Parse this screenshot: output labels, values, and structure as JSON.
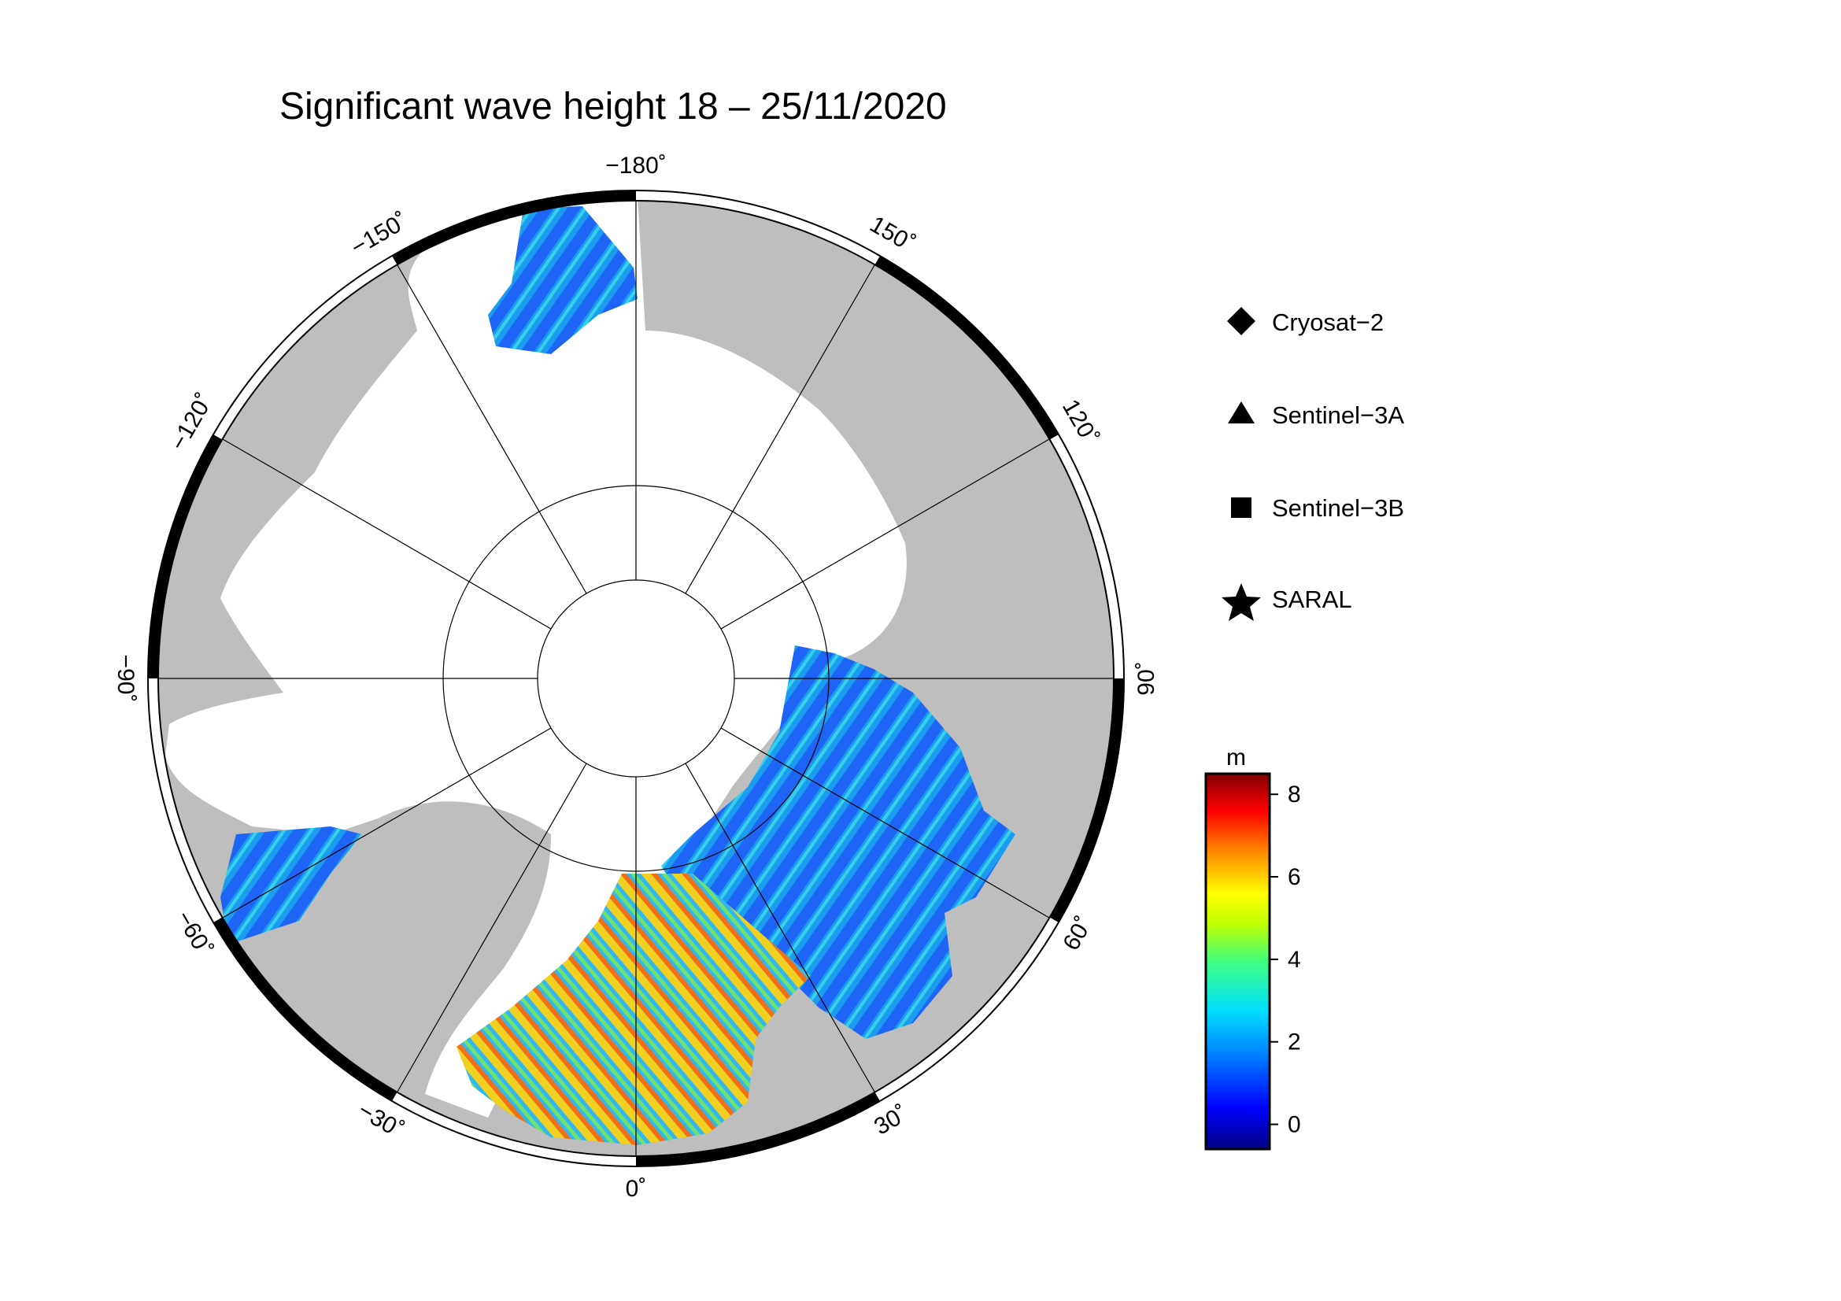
{
  "title": "Significant wave height 18 – 25/11/2020",
  "longitude_labels": [
    {
      "lon": -180,
      "text": "−180˚"
    },
    {
      "lon": 150,
      "text": "150˚"
    },
    {
      "lon": 120,
      "text": "120˚"
    },
    {
      "lon": 90,
      "text": "90˚"
    },
    {
      "lon": 60,
      "text": "60˚"
    },
    {
      "lon": 30,
      "text": "30˚"
    },
    {
      "lon": 0,
      "text": "0˚"
    },
    {
      "lon": -30,
      "text": "−30˚"
    },
    {
      "lon": -60,
      "text": "−60˚"
    },
    {
      "lon": -90,
      "text": "−90˚"
    },
    {
      "lon": -120,
      "text": "−120˚"
    },
    {
      "lon": -150,
      "text": "−150˚"
    }
  ],
  "legend": [
    {
      "symbol": "diamond",
      "label": "Cryosat−2"
    },
    {
      "symbol": "triangle",
      "label": "Sentinel−3A"
    },
    {
      "symbol": "square",
      "label": "Sentinel−3B"
    },
    {
      "symbol": "star",
      "label": "SARAL"
    }
  ],
  "colorbar": {
    "unit": "m",
    "ticks": [
      "0",
      "2",
      "4",
      "6",
      "8"
    ],
    "colors": [
      "#00007f",
      "#0000ff",
      "#0080ff",
      "#00e0ff",
      "#40ff80",
      "#c0ff00",
      "#ffff00",
      "#ff8000",
      "#ff0000",
      "#800000"
    ]
  },
  "colors": {
    "land": "#bebebe",
    "ice": "#ffffff",
    "border": "#000000"
  }
}
